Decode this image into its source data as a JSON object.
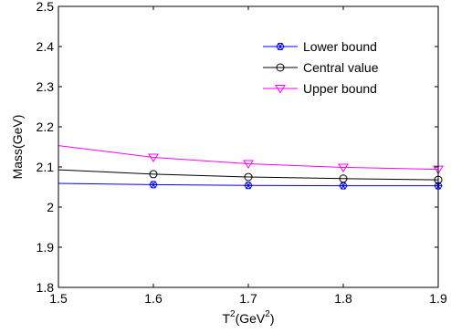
{
  "chart_data": {
    "type": "line",
    "xlabel": {
      "base": "T",
      "sup1": "2",
      "mid": "(GeV",
      "sup2": "2",
      "end": ")"
    },
    "ylabel": "Mass(GeV)",
    "xlim": [
      1.5,
      1.9
    ],
    "ylim": [
      1.8,
      2.5
    ],
    "xticks": [
      "1.5",
      "1.6",
      "1.7",
      "1.8",
      "1.9"
    ],
    "yticks": [
      "1.8",
      "1.9",
      "2",
      "2.1",
      "2.2",
      "2.3",
      "2.4",
      "2.5"
    ],
    "grid": false,
    "legend_position": "top-right",
    "x": [
      1.5,
      1.6,
      1.7,
      1.8,
      1.9
    ],
    "series": [
      {
        "name": "Lower bound",
        "color": "#0000ff",
        "marker": "star",
        "values": [
          2.059,
          2.056,
          2.054,
          2.053,
          2.053
        ]
      },
      {
        "name": "Central value",
        "color": "#000000",
        "marker": "circle",
        "values": [
          2.093,
          2.082,
          2.075,
          2.071,
          2.068
        ]
      },
      {
        "name": "Upper bound",
        "color": "#ff00ff",
        "marker": "triangle-down",
        "values": [
          2.153,
          2.124,
          2.108,
          2.099,
          2.094
        ]
      }
    ]
  }
}
